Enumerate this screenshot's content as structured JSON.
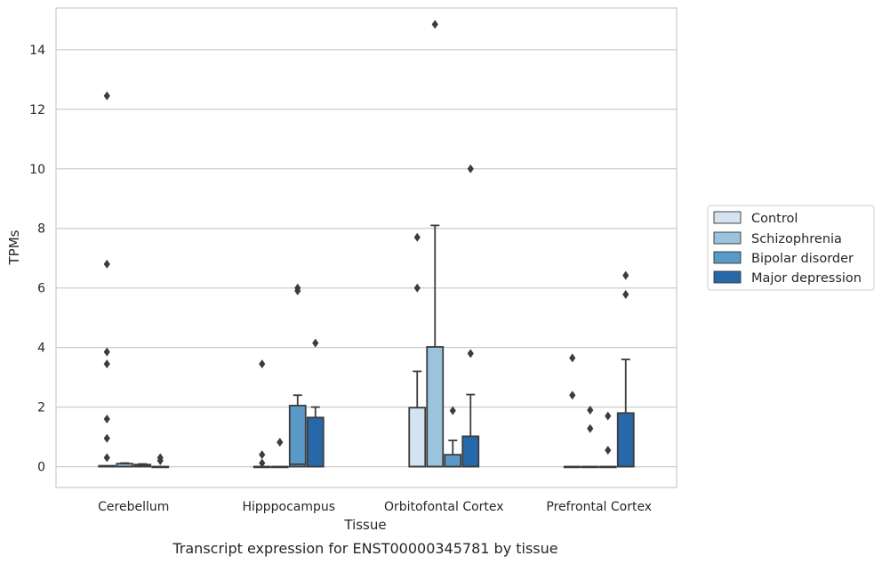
{
  "chart_data": {
    "type": "boxplot",
    "caption": "Transcript expression for ENST00000345781 by tissue",
    "xlabel": "Tissue",
    "ylabel": "TPMs",
    "ylim": [
      -0.7,
      15.4
    ],
    "yticks": [
      0,
      2,
      4,
      6,
      8,
      10,
      12,
      14
    ],
    "grid": "horizontal",
    "legend_position": "right",
    "categories": [
      "Cerebellum",
      "Hipppocampus",
      "Orbitofontal Cortex",
      "Prefrontal Cortex"
    ],
    "series": [
      {
        "name": "Control",
        "color": "#d4e3f2",
        "boxes": [
          {
            "q1": 0,
            "median": 0,
            "q3": 0.03,
            "whisker_low": 0,
            "whisker_high": 0.03,
            "outliers": [
              12.45,
              6.8,
              3.85,
              3.45,
              1.6,
              0.95,
              0.3
            ]
          },
          {
            "q1": 0,
            "median": 0,
            "q3": 0,
            "whisker_low": 0,
            "whisker_high": 0,
            "outliers": [
              3.45,
              0.4,
              0.12
            ]
          },
          {
            "q1": 0,
            "median": 0,
            "q3": 1.98,
            "whisker_low": 0,
            "whisker_high": 3.2,
            "outliers": [
              7.7,
              6.0
            ]
          },
          {
            "q1": 0,
            "median": 0,
            "q3": 0,
            "whisker_low": 0,
            "whisker_high": 0,
            "outliers": [
              3.65,
              2.4
            ]
          }
        ]
      },
      {
        "name": "Schizophrenia",
        "color": "#9ac3dd",
        "boxes": [
          {
            "q1": 0,
            "median": 0,
            "q3": 0.1,
            "whisker_low": 0,
            "whisker_high": 0.12,
            "outliers": []
          },
          {
            "q1": 0,
            "median": 0,
            "q3": 0,
            "whisker_low": 0,
            "whisker_high": 0,
            "outliers": [
              0.82
            ]
          },
          {
            "q1": 0,
            "median": 0,
            "q3": 4.02,
            "whisker_low": 0,
            "whisker_high": 8.1,
            "outliers": [
              14.85
            ]
          },
          {
            "q1": 0,
            "median": 0,
            "q3": 0,
            "whisker_low": 0,
            "whisker_high": 0,
            "outliers": [
              1.9,
              1.28
            ]
          }
        ]
      },
      {
        "name": "Bipolar disorder",
        "color": "#5a9ac8",
        "boxes": [
          {
            "q1": 0,
            "median": 0.03,
            "q3": 0.07,
            "whisker_low": 0,
            "whisker_high": 0.09,
            "outliers": []
          },
          {
            "q1": 0,
            "median": 0.08,
            "q3": 2.05,
            "whisker_low": 0,
            "whisker_high": 2.4,
            "outliers": [
              6.0,
              5.9
            ]
          },
          {
            "q1": 0,
            "median": 0,
            "q3": 0.4,
            "whisker_low": 0,
            "whisker_high": 0.88,
            "outliers": [
              1.88
            ]
          },
          {
            "q1": 0,
            "median": 0,
            "q3": 0,
            "whisker_low": 0,
            "whisker_high": 0,
            "outliers": [
              1.7,
              0.55
            ]
          }
        ]
      },
      {
        "name": "Major depression",
        "color": "#2768aa",
        "boxes": [
          {
            "q1": 0,
            "median": 0,
            "q3": 0,
            "whisker_low": 0,
            "whisker_high": 0,
            "outliers": [
              0.3,
              0.2
            ]
          },
          {
            "q1": 0,
            "median": 0,
            "q3": 1.65,
            "whisker_low": 0,
            "whisker_high": 2.0,
            "outliers": [
              4.15
            ]
          },
          {
            "q1": 0,
            "median": 0,
            "q3": 1.02,
            "whisker_low": 0,
            "whisker_high": 2.42,
            "outliers": [
              10.0,
              3.8
            ]
          },
          {
            "q1": 0,
            "median": 0,
            "q3": 1.8,
            "whisker_low": 0,
            "whisker_high": 3.6,
            "outliers": [
              6.42,
              5.78
            ]
          }
        ]
      }
    ]
  }
}
